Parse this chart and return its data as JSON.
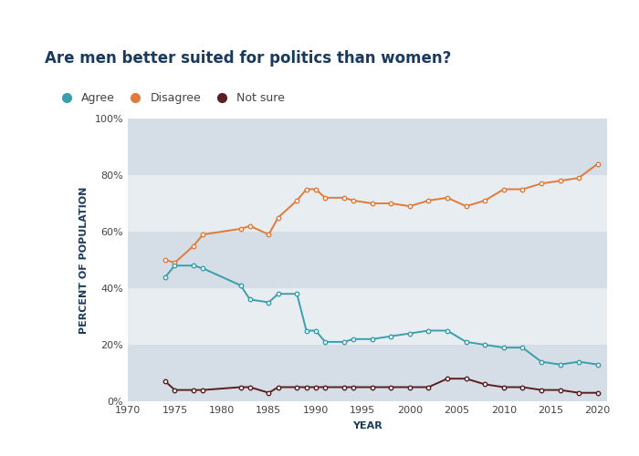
{
  "title": "Are men better suited for politics than women?",
  "ylabel": "PERCENT OF POPULATION",
  "xlabel": "YEAR",
  "gold_bar_color": "#F5C242",
  "background_color": "#ffffff",
  "plot_bg_light": "#e8edf2",
  "plot_bg_dark": "#d5dde6",
  "agree_color": "#3a9fad",
  "disagree_color": "#e07b39",
  "notsure_color": "#5a2020",
  "agree_label": "Agree",
  "disagree_label": "Disagree",
  "notsure_label": "Not sure",
  "agree": {
    "years": [
      1974,
      1975,
      1977,
      1978,
      1982,
      1983,
      1985,
      1986,
      1988,
      1989,
      1990,
      1991,
      1993,
      1994,
      1996,
      1998,
      2000,
      2002,
      2004,
      2006,
      2008,
      2010,
      2012,
      2014,
      2016,
      2018,
      2020
    ],
    "values": [
      44,
      48,
      48,
      47,
      41,
      36,
      35,
      38,
      38,
      25,
      25,
      21,
      21,
      22,
      22,
      23,
      24,
      25,
      25,
      21,
      20,
      19,
      19,
      14,
      13,
      14,
      13
    ]
  },
  "disagree": {
    "years": [
      1974,
      1975,
      1977,
      1978,
      1982,
      1983,
      1985,
      1986,
      1988,
      1989,
      1990,
      1991,
      1993,
      1994,
      1996,
      1998,
      2000,
      2002,
      2004,
      2006,
      2008,
      2010,
      2012,
      2014,
      2016,
      2018,
      2020
    ],
    "values": [
      50,
      49,
      55,
      59,
      61,
      62,
      59,
      65,
      71,
      75,
      75,
      72,
      72,
      71,
      70,
      70,
      69,
      71,
      72,
      69,
      71,
      75,
      75,
      77,
      78,
      79,
      84
    ]
  },
  "notsure": {
    "years": [
      1974,
      1975,
      1977,
      1978,
      1982,
      1983,
      1985,
      1986,
      1988,
      1989,
      1990,
      1991,
      1993,
      1994,
      1996,
      1998,
      2000,
      2002,
      2004,
      2006,
      2008,
      2010,
      2012,
      2014,
      2016,
      2018,
      2020
    ],
    "values": [
      7,
      4,
      4,
      4,
      5,
      5,
      3,
      5,
      5,
      5,
      5,
      5,
      5,
      5,
      5,
      5,
      5,
      5,
      8,
      8,
      6,
      5,
      5,
      4,
      4,
      3,
      3
    ]
  },
  "ylim": [
    0,
    100
  ],
  "xlim": [
    1970,
    2021
  ],
  "yticks": [
    0,
    20,
    40,
    60,
    80,
    100
  ],
  "xticks": [
    1970,
    1975,
    1980,
    1985,
    1990,
    1995,
    2000,
    2005,
    2010,
    2015,
    2020
  ],
  "title_fontsize": 12,
  "axis_label_fontsize": 8,
  "tick_fontsize": 8,
  "legend_fontsize": 9
}
